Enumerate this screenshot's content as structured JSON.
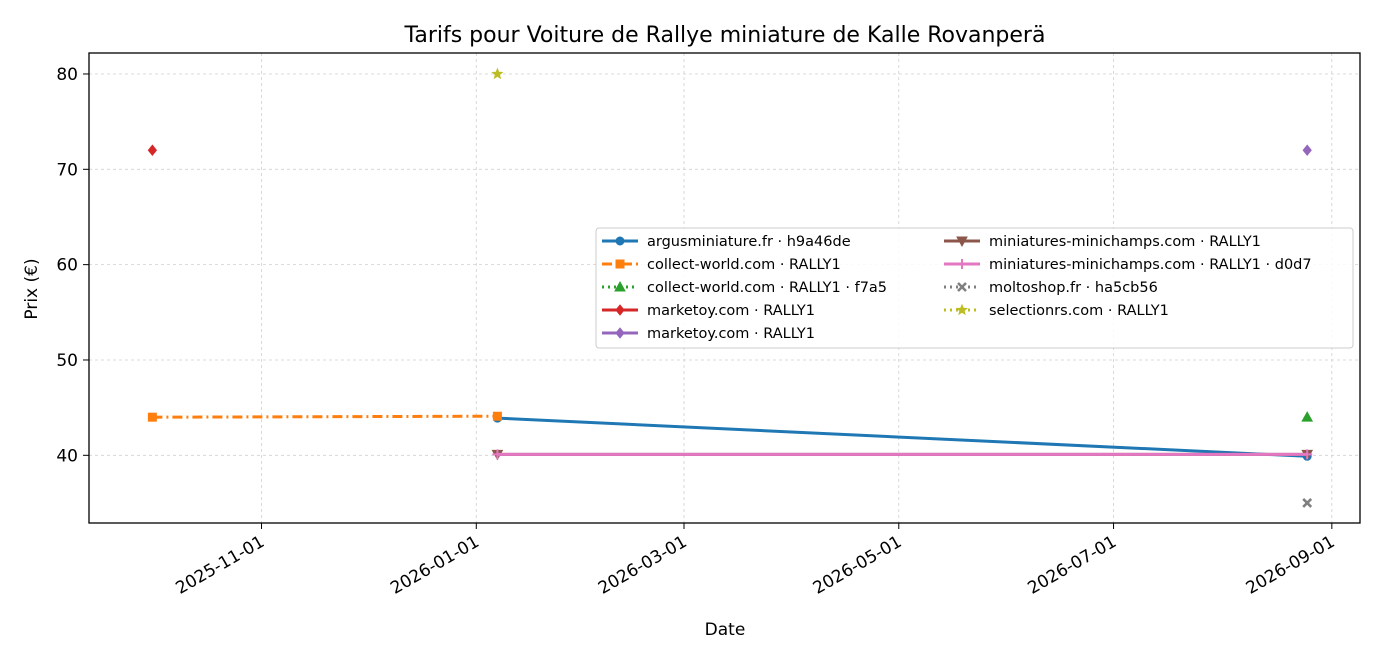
{
  "chart_data": {
    "type": "line",
    "title": "Tarifs pour Voiture de Rallye miniature de Kalle Rovanperä",
    "xlabel": "Date",
    "ylabel": "Prix (€)",
    "x_axis_type": "date",
    "xlim": [
      "2025-09-13",
      "2026-09-09"
    ],
    "ylim": [
      32.9,
      82.2
    ],
    "xticks": [
      "2025-11-01",
      "2026-01-01",
      "2026-03-01",
      "2026-05-01",
      "2026-07-01",
      "2026-09-01"
    ],
    "yticks": [
      40,
      50,
      60,
      70,
      80
    ],
    "grid": true,
    "legend_position": "right",
    "legend_columns": 2,
    "series": [
      {
        "name": "argusminiature.fr · h9a46de",
        "color": "#1f77b4",
        "line_style": "solid",
        "marker": "circle",
        "points": [
          {
            "x": "2026-01-07",
            "y": 43.9
          },
          {
            "x": "2026-08-25",
            "y": 39.9
          }
        ]
      },
      {
        "name": "collect-world.com · RALLY1",
        "color": "#ff7f0e",
        "line_style": "dashdot",
        "marker": "square",
        "points": [
          {
            "x": "2025-10-01",
            "y": 44.0
          },
          {
            "x": "2026-01-07",
            "y": 44.1
          }
        ]
      },
      {
        "name": "collect-world.com · RALLY1 · f7a5",
        "color": "#2ca02c",
        "line_style": "dotted",
        "marker": "triangle-up",
        "points": [
          {
            "x": "2026-08-25",
            "y": 44.0
          }
        ]
      },
      {
        "name": "marketoy.com · RALLY1",
        "color": "#d62728",
        "line_style": "solid",
        "marker": "diamond",
        "points": [
          {
            "x": "2025-10-01",
            "y": 72.0
          }
        ]
      },
      {
        "name": "marketoy.com · RALLY1",
        "color": "#9467bd",
        "line_style": "solid",
        "marker": "diamond",
        "points": [
          {
            "x": "2026-08-25",
            "y": 72.0
          }
        ]
      },
      {
        "name": "miniatures-minichamps.com · RALLY1",
        "color": "#8c564b",
        "line_style": "solid",
        "marker": "triangle-down",
        "points": [
          {
            "x": "2026-01-07",
            "y": 40.1
          },
          {
            "x": "2026-08-25",
            "y": 40.1
          }
        ]
      },
      {
        "name": "miniatures-minichamps.com · RALLY1 · d0d7",
        "color": "#e377c2",
        "line_style": "solid",
        "marker": "plus",
        "points": [
          {
            "x": "2026-01-07",
            "y": 40.1
          },
          {
            "x": "2026-08-25",
            "y": 40.1
          }
        ]
      },
      {
        "name": "moltoshop.fr · ha5cb56",
        "color": "#7f7f7f",
        "line_style": "dotted",
        "marker": "x",
        "points": [
          {
            "x": "2026-08-25",
            "y": 35.0
          }
        ]
      },
      {
        "name": "selectionrs.com · RALLY1",
        "color": "#bcbd22",
        "line_style": "dotted",
        "marker": "star",
        "points": [
          {
            "x": "2026-01-07",
            "y": 80.0
          }
        ]
      }
    ]
  }
}
